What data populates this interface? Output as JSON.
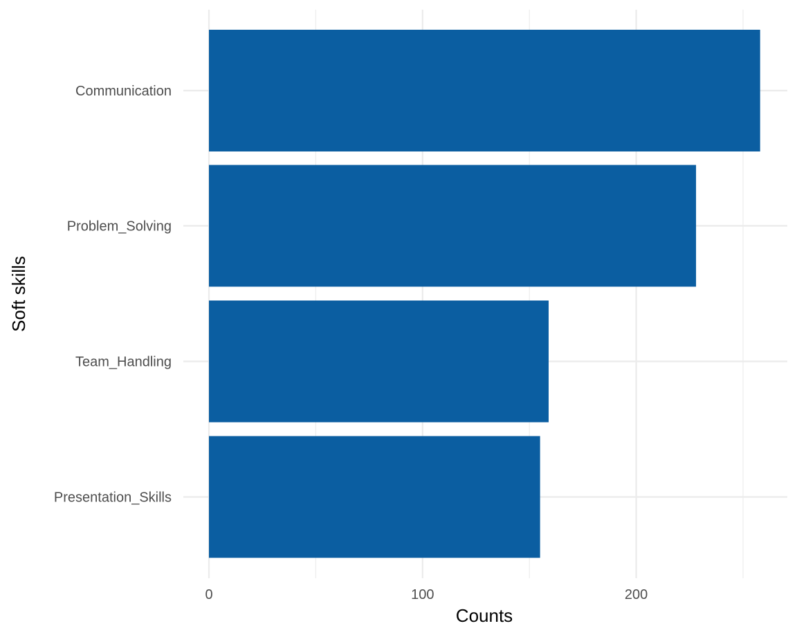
{
  "chart_data": {
    "type": "bar",
    "orientation": "horizontal",
    "title": "",
    "xlabel": "Counts",
    "ylabel": "Soft skills",
    "categories": [
      "Communication",
      "Problem_Solving",
      "Team_Handling",
      "Presentation_Skills"
    ],
    "values": [
      258,
      228,
      159,
      155
    ],
    "xlim": [
      0,
      270
    ],
    "x_major_ticks": [
      0,
      100,
      200
    ],
    "x_minor_ticks": [
      50,
      150,
      250
    ],
    "x_tick_labels": [
      "0",
      "100",
      "200"
    ],
    "grid": true,
    "legend": "none",
    "bar_color": "#0b5ea1",
    "grid_color": "#ebebeb"
  }
}
